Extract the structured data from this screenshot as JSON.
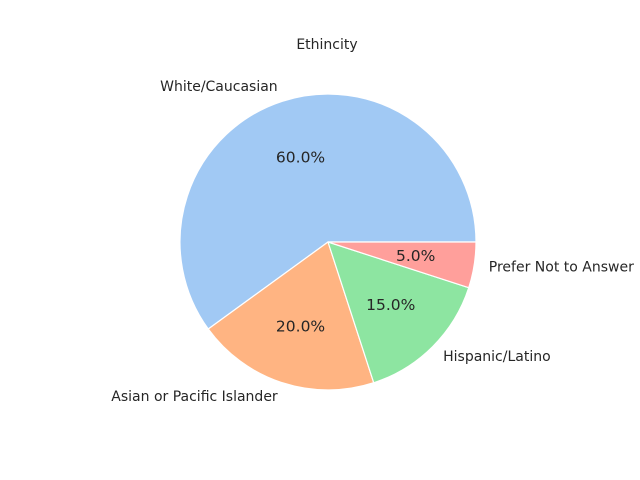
{
  "chart_data": {
    "type": "pie",
    "title": "Ethincity",
    "labels": [
      "White/Caucasian",
      "Asian or Pacific Islander",
      "Hispanic/Latino",
      "Prefer Not to Answer"
    ],
    "values": [
      60.0,
      20.0,
      15.0,
      5.0
    ],
    "percent_labels": [
      "60.0%",
      "20.0%",
      "15.0%",
      "5.0%"
    ],
    "colors": [
      "#a1c9f4",
      "#ffb482",
      "#8de5a1",
      "#ff9f9b"
    ],
    "start_angle": 0,
    "direction": "counterclockwise"
  }
}
